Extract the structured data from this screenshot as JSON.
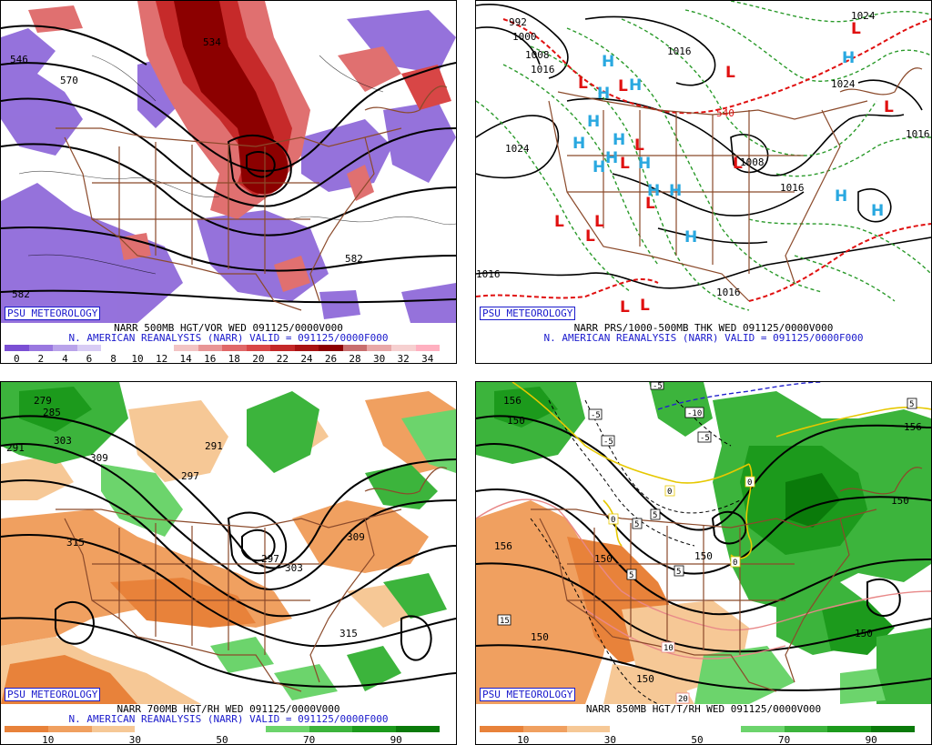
{
  "brand": "PSU METEOROLOGY",
  "panels": [
    {
      "id": "p500",
      "caption_line1": "NARR 500MB HGT/VOR WED 091125/0000V000",
      "caption_line2": "N. AMERICAN REANALYSIS (NARR) VALID = 091125/0000F000",
      "colorbar_ticks": [
        "0",
        "2",
        "4",
        "6",
        "8",
        "10",
        "12",
        "14",
        "16",
        "18",
        "20",
        "22",
        "24",
        "26",
        "28",
        "30",
        "32",
        "34"
      ],
      "colorbar_colors": [
        "#7b4fd4",
        "#9a78e0",
        "#b9a3ea",
        "#d8ccf4",
        "#ffffff",
        "#ffffff",
        "#ffffff",
        "#f2c4c4",
        "#e89595",
        "#e06868",
        "#d84646",
        "#c42828",
        "#a81212",
        "#8c0000",
        "#c86e6e",
        "#e8a8a8",
        "#f6d0d0",
        "#ffb0c0"
      ],
      "contour_labels": [
        "570",
        "534",
        "582",
        "582",
        "546"
      ]
    },
    {
      "id": "pprs",
      "caption_line1": "NARR PRS/1000-500MB THK WED 091125/0000V000",
      "caption_line2": "N. AMERICAN REANALYSIS (NARR) VALID = 091125/0000F000",
      "contour_labels": [
        "992",
        "1000",
        "1008",
        "1016",
        "1016",
        "1024",
        "1024",
        "1016",
        "1016",
        "1016",
        "1008",
        "1024",
        "1016",
        "540"
      ],
      "high_symbol": "H",
      "low_symbol": "L"
    },
    {
      "id": "p700",
      "caption_line1": "NARR 700MB HGT/RH WED 091125/0000V000",
      "caption_line2": "N. AMERICAN REANALYSIS (NARR) VALID = 091125/0000F000",
      "colorbar_ticks": [
        "10",
        "30",
        "50",
        "70",
        "90"
      ],
      "colorbar_colors": [
        "#e8823a",
        "#f0a060",
        "#f6c896",
        "#ffffff",
        "#ffffff",
        "#ffffff",
        "#6cd46c",
        "#3cb43c",
        "#1c9a1c",
        "#0a7a0a"
      ],
      "contour_labels": [
        "279",
        "285",
        "291",
        "303",
        "309",
        "291",
        "297",
        "297",
        "303",
        "309",
        "315",
        "315"
      ]
    },
    {
      "id": "p850",
      "caption_line1": "NARR 850MB HGT/T/RH WED 091125/0000V000",
      "caption_line2": "",
      "colorbar_ticks": [
        "10",
        "30",
        "50",
        "70",
        "90"
      ],
      "colorbar_colors": [
        "#e8823a",
        "#f0a060",
        "#f6c896",
        "#ffffff",
        "#ffffff",
        "#ffffff",
        "#6cd46c",
        "#3cb43c",
        "#1c9a1c",
        "#0a7a0a"
      ],
      "contour_labels": [
        "156",
        "150",
        "150",
        "150",
        "150",
        "150",
        "156",
        "150",
        "156",
        "150"
      ],
      "temp_labels": [
        "-5",
        "-5",
        "-10",
        "-5",
        "-5",
        "0",
        "0",
        "0",
        "5",
        "5",
        "5",
        "5",
        "5",
        "10",
        "15",
        "20",
        "0"
      ]
    }
  ]
}
